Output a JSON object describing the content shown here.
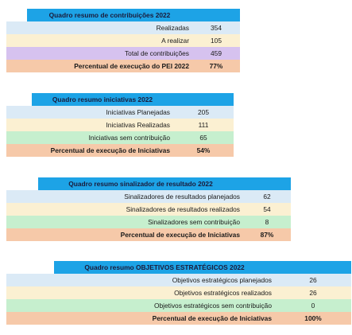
{
  "t1": {
    "title": "Quadro resumo de contribuições 2022",
    "rows": [
      {
        "label": "Realizadas",
        "value": "354"
      },
      {
        "label": "A realizar",
        "value": "105"
      },
      {
        "label": "Total de  contribuições",
        "value": "459"
      },
      {
        "label": "Percentual de execução do PEI 2022",
        "value": "77%"
      }
    ]
  },
  "t2": {
    "title": "Quadro resumo iniciativas 2022",
    "rows": [
      {
        "label": "Iniciativas Planejadas",
        "value": "205"
      },
      {
        "label": "Iniciativas Realizadas",
        "value": "111"
      },
      {
        "label": "Iniciativas sem contribuição",
        "value": "65"
      },
      {
        "label": "Percentual de execução de Iniciativas",
        "value": "54%"
      }
    ]
  },
  "t3": {
    "title": "Quadro resumo sinalizador de resultado 2022",
    "rows": [
      {
        "label": "Sinalizadores de resultados planejados",
        "value": "62"
      },
      {
        "label": "Sinalizadores de resultados  realizados",
        "value": "54"
      },
      {
        "label": "Sinalizadores sem contribuição",
        "value": "8"
      },
      {
        "label": "Percentual de execução de Iniciativas",
        "value": "87%"
      }
    ]
  },
  "t4": {
    "title": "Quadro resumo OBJETIVOS ESTRATÉGICOS 2022",
    "rows": [
      {
        "label": "Objetivos estratégicos planejados",
        "value": "26"
      },
      {
        "label": "Objetivos estratégicos realizados",
        "value": "26"
      },
      {
        "label": "Objetivos estratégicos sem contribuição",
        "value": "0"
      },
      {
        "label": "Percentual de execução de Iniciativas",
        "value": "100%"
      }
    ]
  }
}
